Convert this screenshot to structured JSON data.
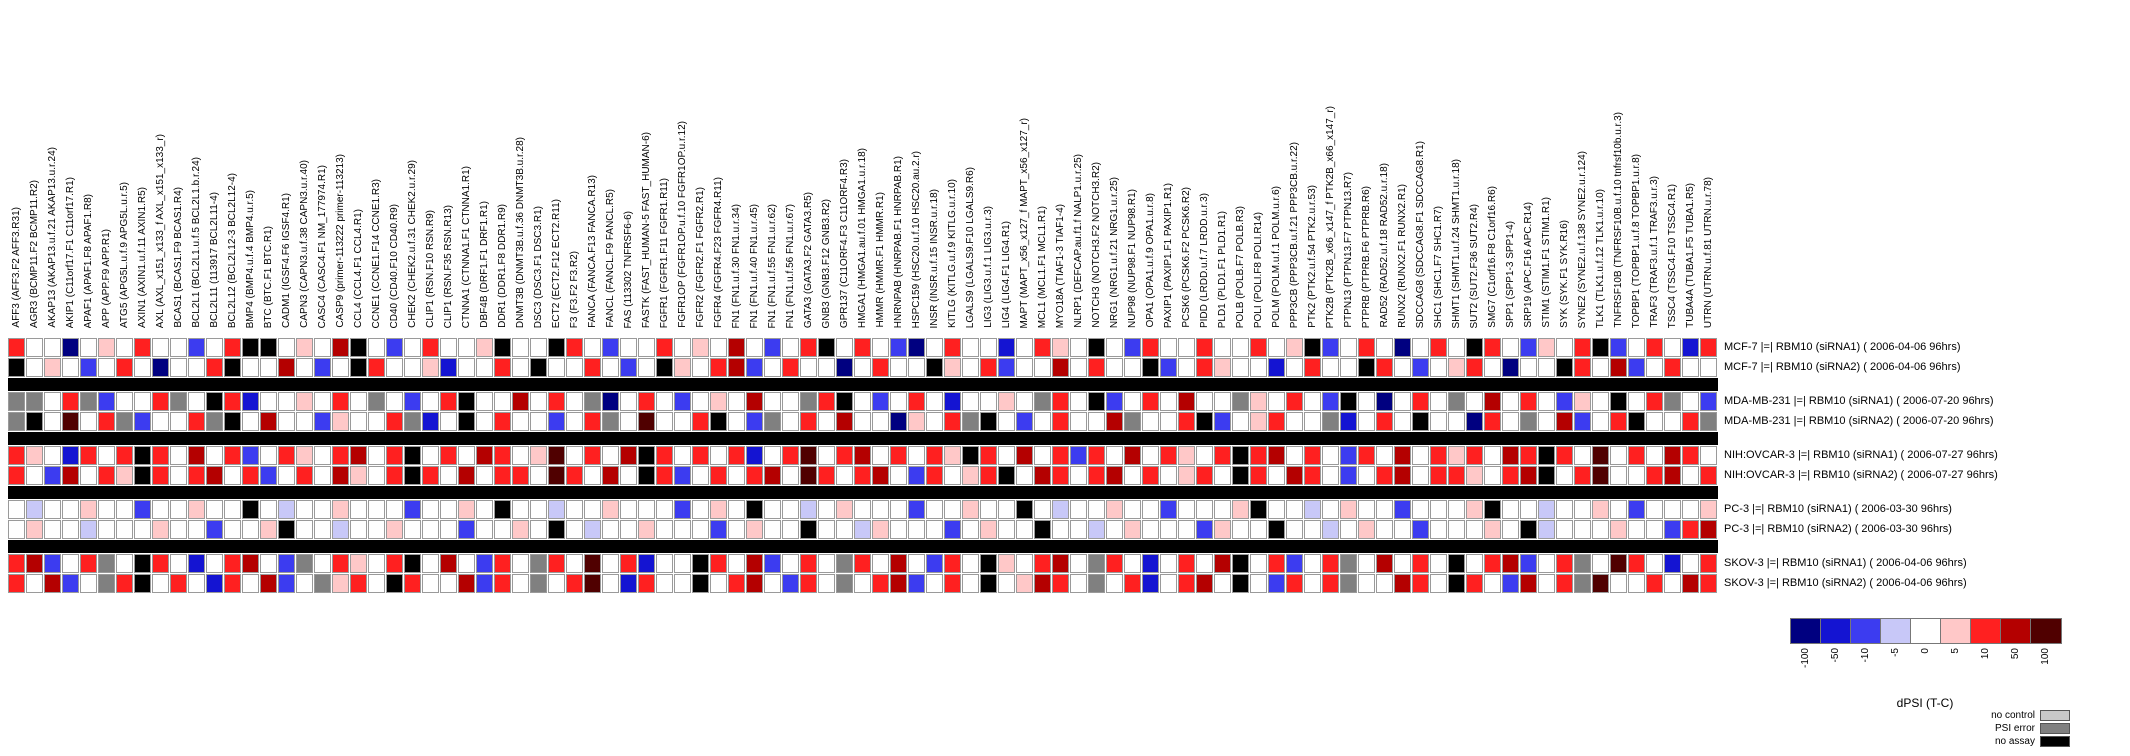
{
  "legend": {
    "colorbar": {
      "title": "dPSI (T-C)",
      "ticks": [
        "-100",
        "-50",
        "-10",
        "-5",
        "0",
        "5",
        "10",
        "50",
        "100"
      ],
      "colors": [
        "#000080",
        "#1414d2",
        "#3c3cf0",
        "#c8c8f8",
        "#ffffff",
        "#ffc8c8",
        "#ff2020",
        "#b40000",
        "#500000"
      ]
    },
    "status": [
      {
        "label": "no control",
        "color": "#c8c8c8"
      },
      {
        "label": "PSI error",
        "color": "#808080"
      },
      {
        "label": "no assay",
        "color": "#000000"
      }
    ]
  },
  "chart_data": {
    "type": "heatmap",
    "value_label": "dPSI (T-C)",
    "code_values": {
      "n": -100,
      "B": -50,
      "b": -10,
      "l": -5,
      "w": 0,
      "p": 5,
      "r": 10,
      "R": 50,
      "m": 100,
      "K": "no assay",
      "E": "PSI error",
      "C": "no control"
    },
    "code_colors": {
      "n": "#000080",
      "B": "#1414d2",
      "b": "#3c3cf0",
      "l": "#c8c8f8",
      "w": "#ffffff",
      "p": "#ffc8c8",
      "r": "#ff2020",
      "R": "#b40000",
      "m": "#500000",
      "K": "#000000",
      "E": "#808080",
      "C": "#c8c8c8"
    },
    "columns": [
      "AFF3 (AFF3.F2 AFF3.R31)",
      "AGR3 (BCMP11.F2 BCMP11.R2)",
      "AKAP13 (AKAP13.u.f.21 AKAP13.u.r.24)",
      "AKIP1 (C11orf17.F1 C11orf17.R1)",
      "APAF1 (APAF1.F8 APAF1.R8)",
      "APP (APP.F9 APP.R1)",
      "ATG5 (APG5L.u.f.9 APG5L.u.r.5)",
      "AXIN1 (AXIN1.u.f.11 AXIN1.R5)",
      "AXL (AXL_x151_x133_f AXL_x151_x133_r)",
      "BCAS1 (BCAS1.F9 BCAS1.R4)",
      "BCL2L1 (BCL2L1.u.f.5 BCL2L1.b.r.24)",
      "BCL2L11 (113917 BCL2L11-4)",
      "BCL2L12 (BCL2L12-3 BCL2L12-4)",
      "BMP4 (BMP4.u.f.4 BMP4.u.r.5)",
      "BTC (BTC.F1 BTC.R1)",
      "CADM1 (IGSF4.F6 IGSF4.R1)",
      "CAPN3 (CAPN3.u.f.38 CAPN3.u.r.40)",
      "CASC4 (CASC4.F1 NM_177974.R1)",
      "CASP9 (primer-113222 primer-113213)",
      "CCL4 (CCL4.F1 CCL4.R1)",
      "CCNE1 (CCNE1.F14 CCNE1.R3)",
      "CD40 (CD40.F10 CD40.R9)",
      "CHEK2 (CHEK2.u.f.31 CHEK2.u.r.29)",
      "CLIP1 (RSN.F10 RSN.R9)",
      "CLIP1 (RSN.F35 RSN.R13)",
      "CTNNA1 (CTNNA1.F1 CTNNA1.R1)",
      "DBF4B (DRF1.F1 DRF1.R1)",
      "DDR1 (DDR1.F8 DDR1.R9)",
      "DNMT3B (DNMT3B.u.f.36 DNMT3B.u.r.28)",
      "DSC3 (DSC3.F1 DSC3.R1)",
      "ECT2 (ECT2.F12 ECT2.R11)",
      "F3 (F3.F2 F3.R2)",
      "FANCA (FANCA.F13 FANCA.R13)",
      "FANCL (FANCL.F9 FANCL.R5)",
      "FAS (113302 TNFRSF6-6)",
      "FASTK (FAST_HUMAN-5 FAST_HUMAN-6)",
      "FGFR1 (FGFR1.F11 FGFR1.R11)",
      "FGFR1OP (FGFR1OP.u.f.10 FGFR1OP.u.r.12)",
      "FGFR2 (FGFR2.F1 FGFR2.R1)",
      "FGFR4 (FGFR4.F23 FGFR4.R11)",
      "FN1 (FN1.u.f.30 FN1.u.r.34)",
      "FN1 (FN1.u.f.40 FN1.u.r.45)",
      "FN1 (FN1.u.f.55 FN1.u.r.62)",
      "FN1 (FN1.u.f.56 FN1.u.r.67)",
      "GATA3 (GATA3.F2 GATA3.R5)",
      "GNB3 (GNB3.F12 GNB3.R2)",
      "GPR137 (C11ORF4.F3 C11ORF4.R3)",
      "HMGA1 (HMGA1.au.f.01 HMGA1.u.r.18)",
      "HMMR (HMMR.F1 HMMR.R1)",
      "HNRNPAB (HNRPAB.F1 HNRPAB.R1)",
      "HSPC159 (HSC20.u.f.10 HSC20.au.2.r)",
      "INSR (INSR.u.f.15 INSR.u.r.18)",
      "KITLG (KITLG.u.f.9 KITLG.u.r.10)",
      "LGALS9 (LGALS9.F10 LGALS9.R6)",
      "LIG3 (LIG3.u.f.1 LIG3.u.r.3)",
      "LIG4 (LIG4.F1 LIG4.R1)",
      "MAPT (MAPT_x56_x127_f MAPT_x56_x127_r)",
      "MCL1 (MCL1.F1 MCL1.R1)",
      "MYO18A (TIAF1-3 TIAF1-4)",
      "NLRP1 (DEFCAP.au.f1.f NALP1.u.r.25)",
      "NOTCH3 (NOTCH3.F2 NOTCH3.R2)",
      "NRG1 (NRG1.u.f.21 NRG1.u.r.25)",
      "NUP98 (NUP98.F1 NUP98.R1)",
      "OPA1 (OPA1.u.f.9 OPA1.u.r.8)",
      "PAXIP1 (PAXIP1.F1 PAXIP1.R1)",
      "PCSK6 (PCSK6.F2 PCSK6.R2)",
      "PIDD (LRDD.u.f.7 LRDD.u.r.3)",
      "PLD1 (PLD1.F1 PLD1.R1)",
      "POLB (POLB.F7 POLB.R3)",
      "POLI (POLI.F8 POLI.R14)",
      "POLM (POLM.u.f.1 POLM.u.r.6)",
      "PPP3CB (PPP3CB.u.f.21 PPP3CB.u.r.22)",
      "PTK2 (PTK2.u.f.54 PTK2.u.r.53)",
      "PTK2B (PTK2B_x66_x147_f PTK2B_x66_x147_r)",
      "PTPN13 (PTPN13.F7 PTPN13.R7)",
      "PTPRB (PTPRB.F6 PTPRB.R6)",
      "RAD52 (RAD52.u.f.18 RAD52.u.r.18)",
      "RUNX2 (RUNX2.F1 RUNX2.R1)",
      "SDCCAG8 (SDCCAG8.F1 SDCCAG8.R1)",
      "SHC1 (SHC1.F7 SHC1.R7)",
      "SHMT1 (SHMT1.u.f.24 SHMT1.u.r.18)",
      "SUT2 (SUT2.F36 SUT2.R4)",
      "SMG7 (C1orf16.F8 C1orf16.R6)",
      "SPP1 (SPP1-3 SPP1-4)",
      "SRP19 (APC.F16 APC.R14)",
      "STIM1 (STIM1.F1 STIM1.R1)",
      "SYK (SYK.F1 SYK.R16)",
      "SYNE2 (SYNE2.u.f.138 SYNE2.u.r.124)",
      "TLK1 (TLK1.u.f.12 TLK1.u.r.10)",
      "TNFRSF10B (TNFRSF10B.u.f.10 tnfrsf10b.u.r.3)",
      "TOPBP1 (TOPBP1.u.f.8 TOPBP1.u.r.8)",
      "TRAF3 (TRAF3.u.f.1 TRAF3.u.r.3)",
      "TSSC4 (TSSC4.F10 TSSC4.R1)",
      "TUBA4A (TUBA1.F5 TUBA1.R5)",
      "UTRN (UTRN.u.f.81 UTRN.u.r.78)"
    ],
    "rows": [
      {
        "label": "MCF-7 |=| RBM10 (siRNA1) ( 2006-04-06 96hrs)",
        "group": 0,
        "cells": "rwwnwpwrwwbwrKKwpwRKwbwrwwpKwwKrwbwwrwpwRwbwrKwrwbnwrwwBwrpwKwbrwwrwwrwpKbwrwnwrwKrwbpwrKbwrwBr"
      },
      {
        "label": "MCF-7 |=| RBM10 (siRNA2) ( 2006-04-06 96hrs)",
        "group": 0,
        "cells": "KwpwbwrwnwwrKwwRwbwKrwwpBwwrwKwwrwbwKpwrRbwrwwnwrwwKpwrbwwRwrwwKbwrpwwBwrwwKrwbwprwnwwKrwRbwrww"
      },
      {
        "label": "MDA-MB-231 |=| RBM10 (siRNA1) ( 2006-07-20 96hrs)",
        "group": 1,
        "cells": "EEwrEbwwrEwKrBwwpwrwEwbwrKwwRwrwEnwrwbwpwRwwErKwbwrwBwwpwErwKbwrwRwwEpwrwbKwnwrwEwRwrwbpwKwrEwb"
      },
      {
        "label": "MDA-MB-231 |=| RBM10 (siRNA2) ( 2006-07-20 96hrs)",
        "group": 1,
        "cells": "EKwmwrEbwwrEKwRwwbpwwrEBwKwrwwbwrEwmwwrKwbEwrwRwwnpwrEKwbwrwwREwwrKbwprwwEBwrwKwwnrwEwRbwrKwwrE"
      },
      {
        "label": "NIH:OVCAR-3 |=| RBM10 (siRNA1) ( 2006-07-27 96hrs)",
        "group": 2,
        "cells": "rpwBrwrKrwRwrbwrpwrRwrKwrwRrwpmwrwRKrwrwrBwrmwrRwrwrpKrwRwrbrwRwrpwrKrRwrwbrwRwrprwRrKrwmwrwRrw"
      },
      {
        "label": "NIH:OVCAR-3 |=| RBM10 (siRNA2) ( 2006-07-27 96hrs)",
        "group": 2,
        "cells": "rwbRwrpKrwrRwrbwrwRpwrKrwRwrrwmrwRwKrbwrwrRwmrwrRwbrwprKwRrwrRwrwprwKrwRrwbwrRwrrpwrRKwrmwwrRwr"
      },
      {
        "label": "PC-3 |=| RBM10 (siRNA1) ( 2006-03-30 96hrs)",
        "group": 3,
        "cells": "wlwwpwwbwwpwwKwlwwpwwwbwwpwKwwlwwpwwwbwpwKwwlwpwwwbwwpwwKwlwwpwwbwwwpKwwlwpwwbwwwpKwwlwwpwbwwwp"
      },
      {
        "label": "PC-3 |=| RBM10 (siRNA2) ( 2006-03-30 96hrs)",
        "group": 3,
        "cells": "wpwwlwwwpwwbwwpKwwlwwpwwwbwwpwKwlwwpwwwbwpwwKwwlpwwwbwpwwKwwlwpwwwbpwwKwwlwpwwbwwwpwKlwwwpwwbrR"
      },
      {
        "label": "SKOV-3 |=| RBM10 (siRNA1) ( 2006-04-06 96hrs)",
        "group": 4,
        "cells": "rRbwrEwKrwBwrRwbEwrpwrKwRwbrwErwmwrBwwKrwRbwrwErwRwbrwKpwrRwErwBwrwRKwrbwrEwRwrwKwrRbwrEwmrwBwr"
      },
      {
        "label": "SKOV-3 |=| RBM10 (siRNA2) ( 2006-04-06 96hrs)",
        "group": 4,
        "cells": "rwRbwErKwrwBrwRbwEprwKrwwRbrwEwrmwBrwwKwrRwbrwEwrRbwrwKwpRrwEwrBwrRwKwbrwrEwwRrwKrwbRwrEmwwrwRr"
      }
    ]
  }
}
